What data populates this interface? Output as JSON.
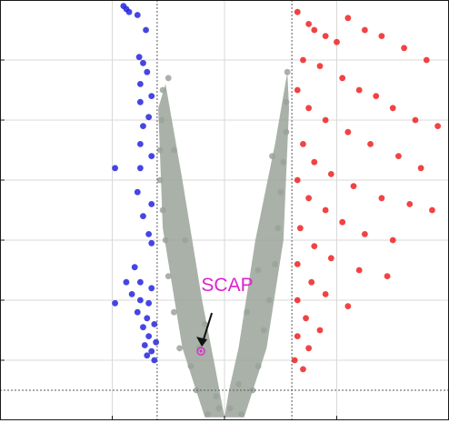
{
  "chart_data": {
    "type": "scatter",
    "title": "",
    "xlabel": "",
    "ylabel": "",
    "xlim": [
      -4,
      4
    ],
    "ylim": [
      0,
      7
    ],
    "x_ticks": [
      -2,
      0,
      2
    ],
    "y_ticks": [
      1,
      2,
      3,
      4,
      5,
      6
    ],
    "thresholds": {
      "fold_change_x": [
        -1.2,
        1.2
      ],
      "significance_y": 0.5
    },
    "grid": true,
    "legend": "none",
    "colors": {
      "down": "#2424e0",
      "neutral": "#9aa39a",
      "up": "#ee2222",
      "highlight": "#e020d0",
      "arrow": "#111111"
    },
    "series": [
      {
        "group": "down",
        "points": [
          [
            -1.8,
            6.9
          ],
          [
            -1.75,
            6.85
          ],
          [
            -1.7,
            6.8
          ],
          [
            -1.55,
            6.75
          ],
          [
            -1.4,
            6.5
          ],
          [
            -1.52,
            6.05
          ],
          [
            -1.45,
            5.95
          ],
          [
            -1.38,
            5.8
          ],
          [
            -1.5,
            5.6
          ],
          [
            -1.3,
            5.4
          ],
          [
            -1.5,
            5.3
          ],
          [
            -1.35,
            5.05
          ],
          [
            -1.45,
            4.9
          ],
          [
            -1.5,
            4.6
          ],
          [
            -1.3,
            4.4
          ],
          [
            -1.5,
            4.2
          ],
          [
            -1.95,
            4.2
          ],
          [
            -1.55,
            3.8
          ],
          [
            -1.3,
            3.6
          ],
          [
            -1.45,
            3.4
          ],
          [
            -1.35,
            3.1
          ],
          [
            -1.3,
            2.95
          ],
          [
            -1.6,
            2.55
          ],
          [
            -1.5,
            2.3
          ],
          [
            -1.3,
            2.2
          ],
          [
            -1.75,
            2.3
          ],
          [
            -1.65,
            2.1
          ],
          [
            -1.5,
            2.0
          ],
          [
            -1.35,
            1.95
          ],
          [
            -1.95,
            1.95
          ],
          [
            -1.55,
            1.8
          ],
          [
            -1.38,
            1.7
          ],
          [
            -1.25,
            1.6
          ],
          [
            -1.45,
            1.55
          ],
          [
            -1.35,
            1.4
          ],
          [
            -1.22,
            1.3
          ],
          [
            -1.42,
            1.25
          ],
          [
            -1.3,
            1.15
          ],
          [
            -1.25,
            1.0
          ],
          [
            -1.38,
            1.08
          ]
        ]
      },
      {
        "group": "neutral",
        "points": [
          [
            -0.3,
            0.1
          ],
          [
            0.3,
            0.1
          ],
          [
            -0.1,
            0.2
          ],
          [
            0.1,
            0.2
          ],
          [
            -0.5,
            0.5
          ],
          [
            0.5,
            0.5
          ],
          [
            -0.6,
            0.9
          ],
          [
            0.6,
            0.9
          ],
          [
            -0.8,
            1.2
          ],
          [
            0.7,
            1.5
          ],
          [
            -0.9,
            1.8
          ],
          [
            0.8,
            2.0
          ],
          [
            -1.0,
            2.4
          ],
          [
            0.9,
            2.6
          ],
          [
            -1.05,
            3.0
          ],
          [
            0.95,
            3.2
          ],
          [
            -1.1,
            3.5
          ],
          [
            1.0,
            3.8
          ],
          [
            -1.15,
            4.0
          ],
          [
            1.05,
            4.3
          ],
          [
            -1.15,
            4.5
          ],
          [
            1.1,
            4.8
          ],
          [
            -1.12,
            5.0
          ],
          [
            1.1,
            5.3
          ],
          [
            -1.1,
            5.5
          ],
          [
            1.12,
            5.8
          ],
          [
            -1.0,
            5.7
          ],
          [
            -0.9,
            4.5
          ],
          [
            0.85,
            4.4
          ],
          [
            -0.7,
            3.0
          ],
          [
            0.6,
            2.5
          ],
          [
            -0.45,
            1.2
          ],
          [
            0.4,
            1.8
          ],
          [
            -0.35,
            1.6
          ],
          [
            0.25,
            0.6
          ],
          [
            -0.15,
            0.4
          ]
        ]
      },
      {
        "group": "up",
        "points": [
          [
            1.3,
            6.8
          ],
          [
            1.5,
            6.6
          ],
          [
            1.6,
            6.5
          ],
          [
            1.8,
            6.4
          ],
          [
            2.0,
            6.3
          ],
          [
            2.2,
            6.7
          ],
          [
            2.5,
            6.5
          ],
          [
            2.8,
            6.4
          ],
          [
            3.2,
            6.2
          ],
          [
            3.6,
            6.0
          ],
          [
            1.4,
            6.0
          ],
          [
            1.7,
            5.9
          ],
          [
            2.1,
            5.7
          ],
          [
            2.4,
            5.5
          ],
          [
            2.7,
            5.4
          ],
          [
            3.0,
            5.2
          ],
          [
            3.4,
            5.0
          ],
          [
            3.8,
            4.9
          ],
          [
            1.3,
            5.5
          ],
          [
            1.5,
            5.2
          ],
          [
            1.8,
            5.0
          ],
          [
            2.2,
            4.8
          ],
          [
            2.6,
            4.6
          ],
          [
            3.1,
            4.4
          ],
          [
            3.5,
            4.2
          ],
          [
            1.4,
            4.6
          ],
          [
            1.6,
            4.3
          ],
          [
            1.9,
            4.1
          ],
          [
            2.3,
            3.9
          ],
          [
            2.8,
            3.7
          ],
          [
            3.3,
            3.6
          ],
          [
            3.7,
            3.5
          ],
          [
            1.3,
            4.0
          ],
          [
            1.5,
            3.7
          ],
          [
            1.8,
            3.5
          ],
          [
            2.1,
            3.3
          ],
          [
            2.5,
            3.1
          ],
          [
            3.0,
            3.0
          ],
          [
            1.35,
            3.2
          ],
          [
            1.6,
            2.9
          ],
          [
            1.9,
            2.7
          ],
          [
            2.4,
            2.5
          ],
          [
            2.9,
            2.4
          ],
          [
            1.3,
            2.6
          ],
          [
            1.55,
            2.3
          ],
          [
            1.8,
            2.1
          ],
          [
            2.2,
            1.9
          ],
          [
            1.3,
            2.0
          ],
          [
            1.45,
            1.7
          ],
          [
            1.7,
            1.5
          ],
          [
            1.3,
            1.4
          ],
          [
            1.5,
            1.2
          ],
          [
            1.25,
            1.0
          ],
          [
            1.4,
            0.85
          ]
        ]
      },
      {
        "group": "highlight",
        "name": "SCAP",
        "points": [
          [
            -0.42,
            1.15
          ]
        ]
      }
    ],
    "annotations": [
      {
        "text": "SCAP",
        "target": [
          -0.42,
          1.15
        ]
      }
    ]
  }
}
